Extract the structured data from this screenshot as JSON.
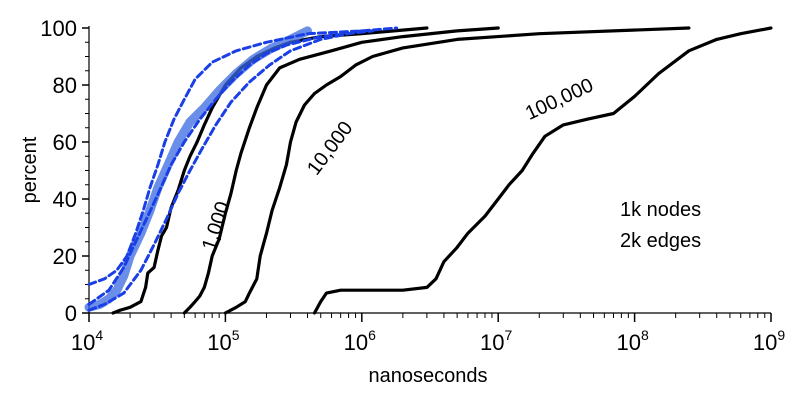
{
  "chart_data": {
    "type": "line",
    "title": "",
    "xlabel": "nanoseconds",
    "ylabel": "percent",
    "x_scale": "log",
    "xlim": [
      10000,
      1000000000
    ],
    "ylim": [
      0,
      100
    ],
    "x_ticks": [
      {
        "base": "10",
        "exp": "4"
      },
      {
        "base": "10",
        "exp": "5"
      },
      {
        "base": "10",
        "exp": "6"
      },
      {
        "base": "10",
        "exp": "7"
      },
      {
        "base": "10",
        "exp": "8"
      },
      {
        "base": "10",
        "exp": "9"
      }
    ],
    "y_ticks": [
      "0",
      "20",
      "40",
      "60",
      "80",
      "100"
    ],
    "grid": false,
    "annotations": {
      "graph_size": [
        "1k nodes",
        "2k edges"
      ]
    },
    "series": [
      {
        "name": "1,000",
        "color": "#000000",
        "style": "solid",
        "points": [
          [
            15000,
            0
          ],
          [
            17000,
            1
          ],
          [
            20000,
            2
          ],
          [
            24000,
            4
          ],
          [
            26000,
            9
          ],
          [
            27000,
            14
          ],
          [
            30000,
            16
          ],
          [
            32000,
            22
          ],
          [
            34000,
            27
          ],
          [
            37000,
            30
          ],
          [
            40000,
            37
          ],
          [
            45000,
            43
          ],
          [
            50000,
            50
          ],
          [
            55000,
            55
          ],
          [
            62000,
            60
          ],
          [
            70000,
            66
          ],
          [
            80000,
            72
          ],
          [
            100000,
            80
          ],
          [
            130000,
            86
          ],
          [
            170000,
            90
          ],
          [
            230000,
            93
          ],
          [
            300000,
            95
          ],
          [
            500000,
            97
          ],
          [
            1000000,
            98
          ],
          [
            3000000,
            100
          ]
        ]
      },
      {
        "name": "",
        "color": "#000000",
        "style": "solid",
        "points": [
          [
            50000,
            0
          ],
          [
            55000,
            2
          ],
          [
            60000,
            4
          ],
          [
            65000,
            6
          ],
          [
            70000,
            9
          ],
          [
            75000,
            14
          ],
          [
            80000,
            20
          ],
          [
            90000,
            26
          ],
          [
            100000,
            35
          ],
          [
            110000,
            42
          ],
          [
            120000,
            50
          ],
          [
            130000,
            56
          ],
          [
            150000,
            65
          ],
          [
            170000,
            72
          ],
          [
            200000,
            80
          ],
          [
            250000,
            86
          ],
          [
            350000,
            89
          ],
          [
            600000,
            92
          ],
          [
            1000000,
            95
          ],
          [
            2000000,
            97
          ],
          [
            5000000,
            99
          ],
          [
            10000000,
            100
          ]
        ]
      },
      {
        "name": "10,000",
        "color": "#000000",
        "style": "solid",
        "points": [
          [
            100000,
            0
          ],
          [
            120000,
            2
          ],
          [
            140000,
            4
          ],
          [
            150000,
            7
          ],
          [
            170000,
            12
          ],
          [
            180000,
            20
          ],
          [
            200000,
            28
          ],
          [
            220000,
            36
          ],
          [
            250000,
            44
          ],
          [
            280000,
            52
          ],
          [
            300000,
            60
          ],
          [
            330000,
            67
          ],
          [
            380000,
            73
          ],
          [
            450000,
            77
          ],
          [
            550000,
            80
          ],
          [
            700000,
            83
          ],
          [
            900000,
            87
          ],
          [
            1200000,
            90
          ],
          [
            2000000,
            93
          ],
          [
            5000000,
            96
          ],
          [
            20000000,
            98
          ],
          [
            250000000,
            100
          ]
        ]
      },
      {
        "name": "100,000",
        "color": "#000000",
        "style": "solid",
        "points": [
          [
            450000,
            0
          ],
          [
            500000,
            4
          ],
          [
            550000,
            7
          ],
          [
            700000,
            8
          ],
          [
            1000000,
            8
          ],
          [
            2000000,
            8
          ],
          [
            3000000,
            9
          ],
          [
            3500000,
            12
          ],
          [
            4000000,
            18
          ],
          [
            5000000,
            23
          ],
          [
            6000000,
            28
          ],
          [
            8000000,
            34
          ],
          [
            10000000,
            40
          ],
          [
            12000000,
            45
          ],
          [
            15000000,
            50
          ],
          [
            18000000,
            56
          ],
          [
            22000000,
            62
          ],
          [
            30000000,
            66
          ],
          [
            45000000,
            68
          ],
          [
            70000000,
            70
          ],
          [
            100000000,
            76
          ],
          [
            150000000,
            84
          ],
          [
            250000000,
            92
          ],
          [
            400000000,
            96
          ],
          [
            600000000,
            98
          ],
          [
            1000000000,
            100
          ]
        ]
      },
      {
        "name": "",
        "color": "#3a6ae0",
        "style": "thick",
        "points": [
          [
            10000,
            2
          ],
          [
            12000,
            3
          ],
          [
            14000,
            5
          ],
          [
            16000,
            8
          ],
          [
            18000,
            13
          ],
          [
            20000,
            20
          ],
          [
            24000,
            28
          ],
          [
            28000,
            36
          ],
          [
            32000,
            44
          ],
          [
            38000,
            52
          ],
          [
            45000,
            60
          ],
          [
            55000,
            67
          ],
          [
            70000,
            72
          ],
          [
            90000,
            78
          ],
          [
            120000,
            84
          ],
          [
            160000,
            89
          ],
          [
            220000,
            93
          ],
          [
            300000,
            96
          ],
          [
            400000,
            99
          ]
        ]
      },
      {
        "name": "",
        "color": "#1a3fe6",
        "style": "dashed",
        "points": [
          [
            10000,
            10
          ],
          [
            13000,
            12
          ],
          [
            16000,
            15
          ],
          [
            19000,
            20
          ],
          [
            22000,
            28
          ],
          [
            25000,
            36
          ],
          [
            28000,
            44
          ],
          [
            32000,
            52
          ],
          [
            36000,
            60
          ],
          [
            42000,
            68
          ],
          [
            50000,
            75
          ],
          [
            60000,
            82
          ],
          [
            80000,
            88
          ],
          [
            120000,
            92
          ],
          [
            200000,
            95
          ],
          [
            400000,
            98
          ],
          [
            1000000,
            99
          ],
          [
            1800000,
            100
          ]
        ]
      },
      {
        "name": "",
        "color": "#1a3fe6",
        "style": "dashed",
        "points": [
          [
            10000,
            3
          ],
          [
            14000,
            8
          ],
          [
            18000,
            16
          ],
          [
            22000,
            25
          ],
          [
            27000,
            34
          ],
          [
            33000,
            43
          ],
          [
            40000,
            52
          ],
          [
            50000,
            60
          ],
          [
            65000,
            68
          ],
          [
            85000,
            75
          ],
          [
            110000,
            81
          ],
          [
            150000,
            87
          ],
          [
            200000,
            91
          ],
          [
            280000,
            94
          ],
          [
            500000,
            97
          ],
          [
            1200000,
            99
          ]
        ]
      },
      {
        "name": "",
        "color": "#1a3fe6",
        "style": "dashed",
        "points": [
          [
            10000,
            1
          ],
          [
            13000,
            3
          ],
          [
            18000,
            7
          ],
          [
            24000,
            15
          ],
          [
            30000,
            24
          ],
          [
            37000,
            33
          ],
          [
            45000,
            42
          ],
          [
            55000,
            50
          ],
          [
            68000,
            58
          ],
          [
            85000,
            66
          ],
          [
            110000,
            74
          ],
          [
            150000,
            81
          ],
          [
            210000,
            87
          ],
          [
            300000,
            92
          ],
          [
            500000,
            96
          ],
          [
            1000000,
            99
          ]
        ]
      }
    ]
  }
}
